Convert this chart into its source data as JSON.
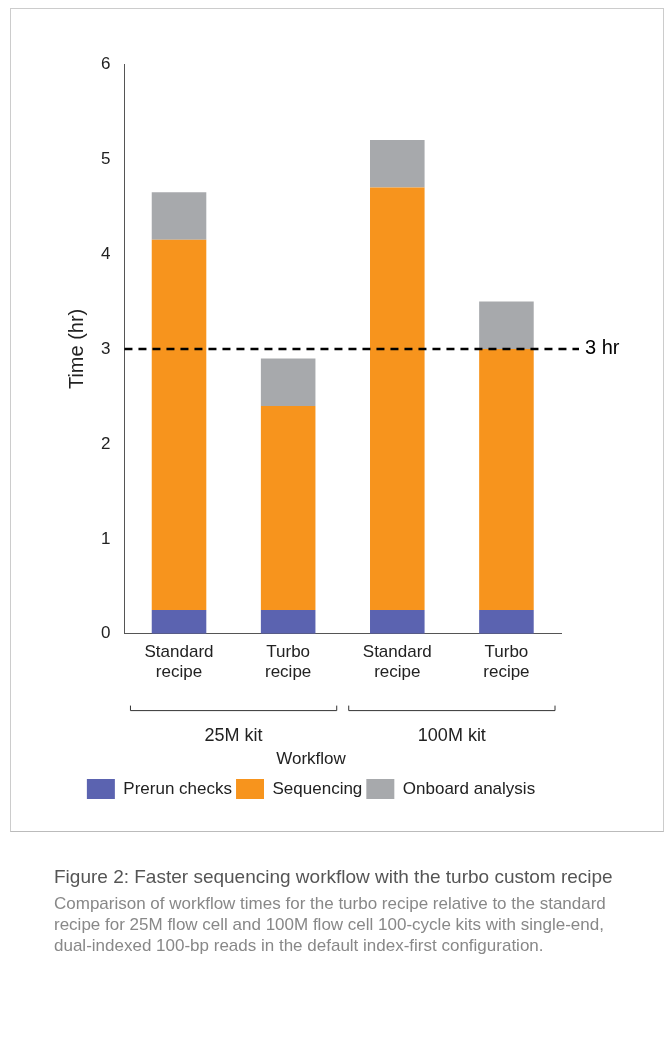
{
  "chart_data": {
    "type": "bar",
    "stacked": true,
    "title": "Figure 2: Faster sequencing workflow with the turbo custom recipe",
    "subtitle": "Comparison of workflow times for the turbo recipe relative to the standard recipe for 25M flow cell and 100M flow cell 100-cycle kits with single-end, dual-indexed 100-bp reads in the default index-first configuration.",
    "ylabel": "Time (hr)",
    "legend_title": "Workflow",
    "categories": [
      "Standard recipe",
      "Turbo recipe",
      "Standard recipe",
      "Turbo recipe"
    ],
    "series": [
      {
        "name": "Prerun checks",
        "color": "#5b63b0",
        "values": [
          0.25,
          0.25,
          0.25,
          0.25
        ]
      },
      {
        "name": "Sequencing",
        "color": "#f7941d",
        "values": [
          3.9,
          2.15,
          4.45,
          2.75
        ]
      },
      {
        "name": "Onboard analysis",
        "color": "#a7a9ac",
        "values": [
          0.5,
          0.5,
          0.5,
          0.5
        ]
      }
    ],
    "annotations": [
      "25M kit",
      "100M kit"
    ],
    "ref_lines": [
      {
        "axis": "y",
        "value": 3,
        "label": "3 hr",
        "color": "#000000",
        "line_style": "dashed"
      }
    ],
    "ylim": [
      0,
      6
    ],
    "yticks": [
      0,
      1,
      2,
      3,
      4,
      5,
      6
    ],
    "grid": false,
    "legend": "bottom"
  }
}
